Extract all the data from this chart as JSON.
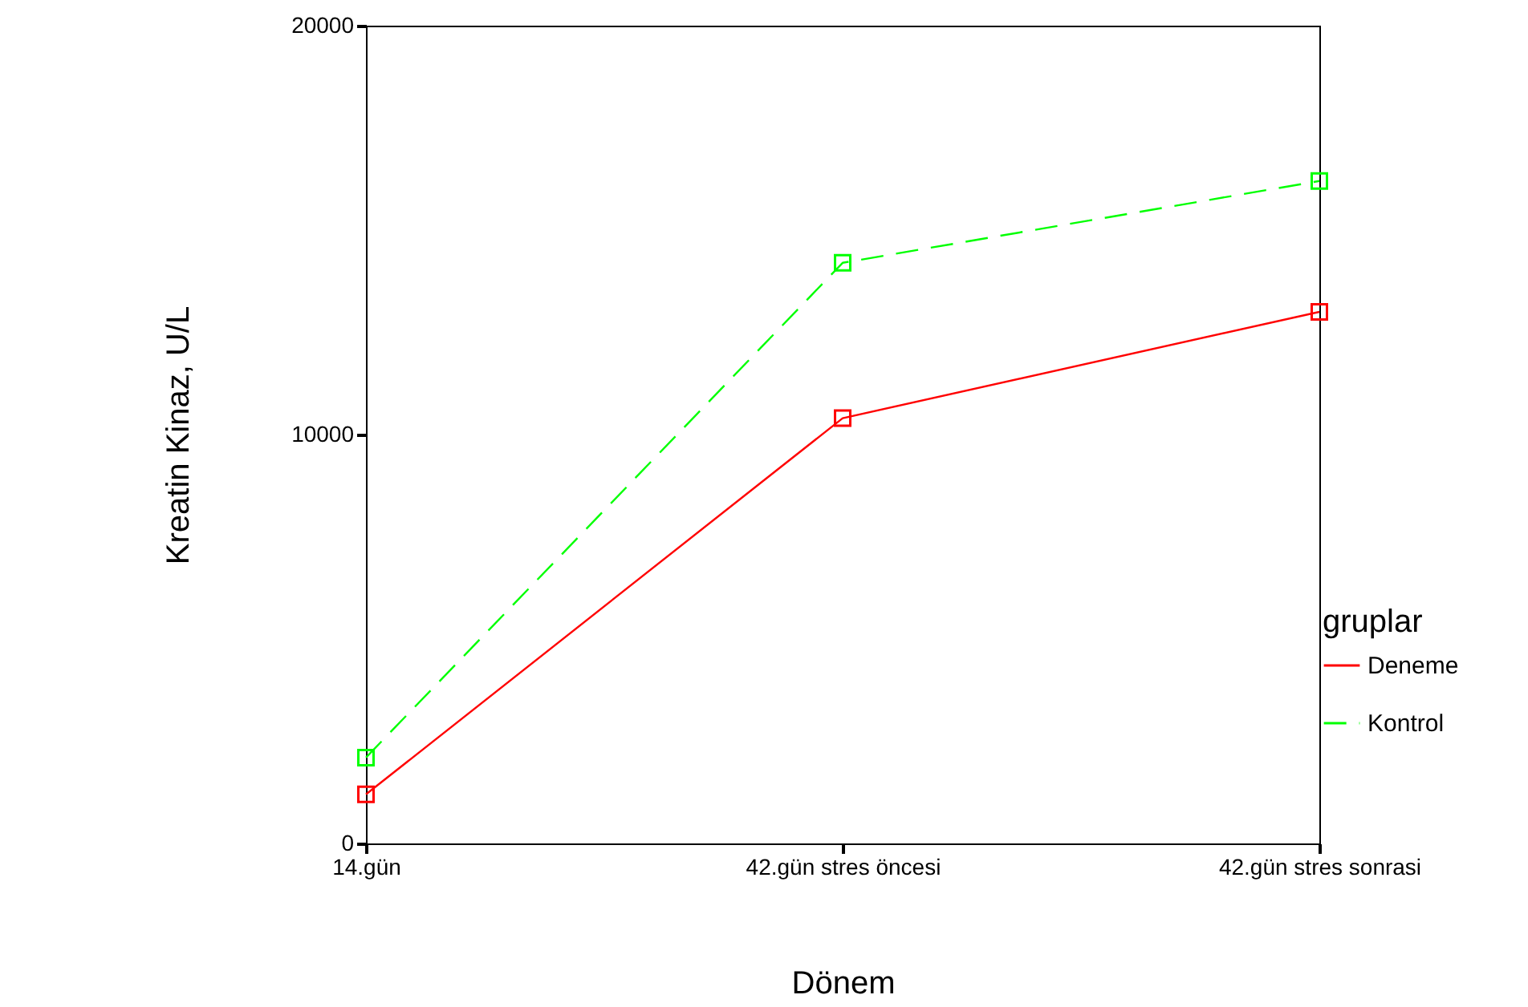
{
  "chart_data": {
    "type": "line",
    "xlabel": "Dönem",
    "ylabel": "Kreatin Kinaz, U/L",
    "legend_title": "gruplar",
    "legend": "right",
    "categories": [
      "14.gün",
      "42.gün stres öncesi",
      "42.gün stres sonrasi"
    ],
    "series": [
      {
        "name": "Deneme",
        "color": "#ff0000",
        "line_style": "solid",
        "values": [
          1200,
          10400,
          13000
        ]
      },
      {
        "name": "Kontrol",
        "color": "#00ff00",
        "line_style": "dashed",
        "values": [
          2100,
          14200,
          16200
        ]
      }
    ],
    "marker": "square",
    "ylim": [
      0,
      20000
    ],
    "yticks": [
      0,
      10000,
      20000
    ],
    "grid": false
  }
}
